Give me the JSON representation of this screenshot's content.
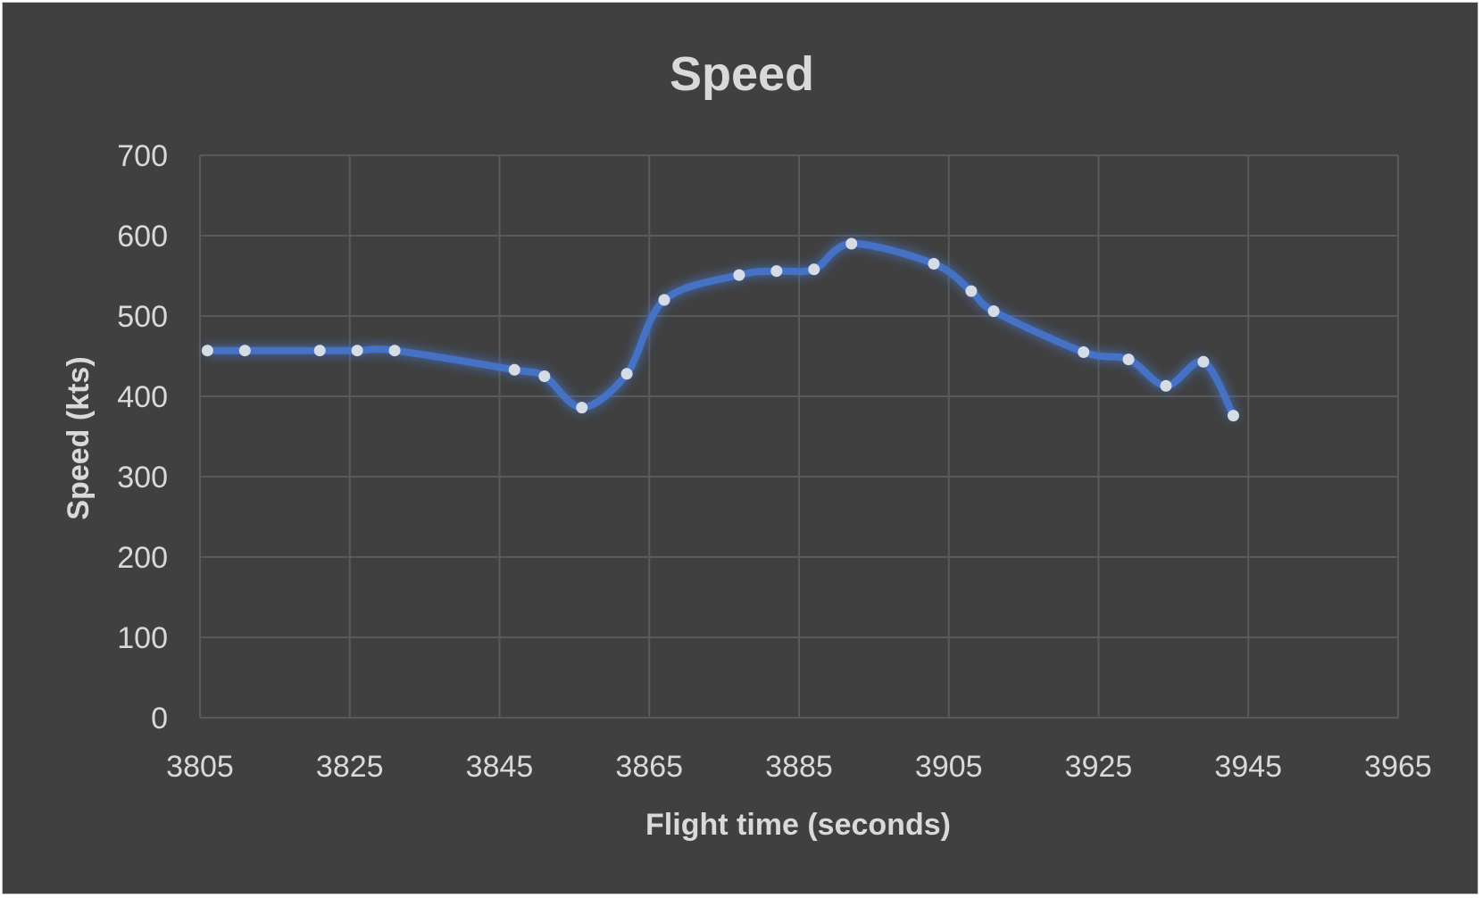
{
  "chart_data": {
    "type": "scatter",
    "title": "Speed",
    "xlabel": "Flight time (seconds)",
    "ylabel": "Speed (kts)",
    "xlim": [
      3805,
      3965
    ],
    "ylim": [
      0,
      700
    ],
    "x_ticks": [
      "3805",
      "3825",
      "3845",
      "3865",
      "3885",
      "3905",
      "3925",
      "3945",
      "3965"
    ],
    "y_ticks": [
      "0",
      "100",
      "200",
      "300",
      "400",
      "500",
      "600",
      "700"
    ],
    "grid": true,
    "legend": "none",
    "smooth": true,
    "markers": true,
    "series": [
      {
        "color": "#4472c4",
        "x": [
          3806,
          3811,
          3821,
          3826,
          3831,
          3847,
          3851,
          3856,
          3862,
          3867,
          3877,
          3882,
          3887,
          3892,
          3903,
          3908,
          3911,
          3923,
          3929,
          3934,
          3939,
          3943
        ],
        "y": [
          457,
          457,
          457,
          457,
          457,
          433,
          425,
          386,
          428,
          520,
          551,
          556,
          558,
          590,
          565,
          531,
          506,
          455,
          446,
          413,
          443,
          376
        ]
      }
    ]
  }
}
